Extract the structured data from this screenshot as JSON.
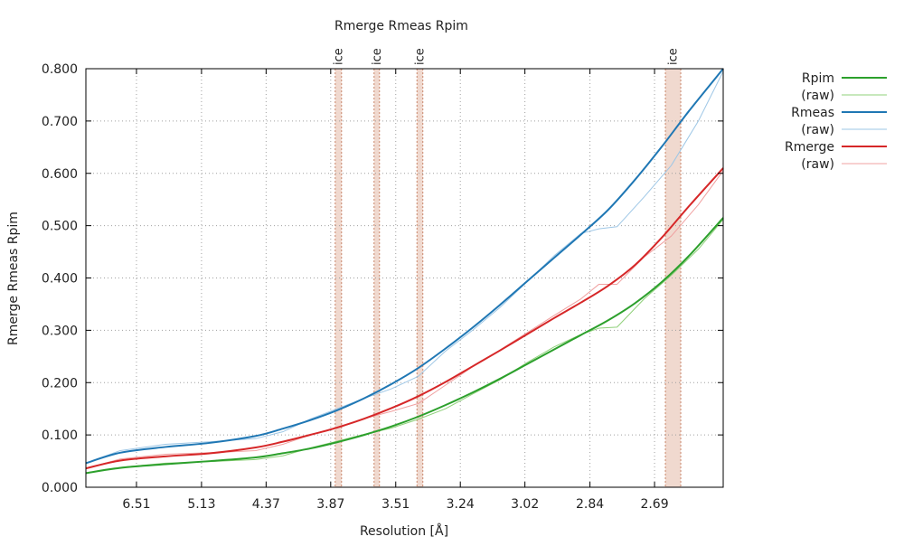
{
  "chart_data": {
    "type": "line",
    "title": "Rmerge Rmeas Rpim",
    "xlabel": "Resolution [Å]",
    "ylabel": "Rmerge Rmeas Rpim",
    "x_axis_note": "x values are 1/d² (Å⁻²); tick labels show resolution d in Å",
    "xlim": [
      0.0124,
      0.1535
    ],
    "ylim": [
      0.0,
      0.8
    ],
    "x_ticks": [
      {
        "x": 0.0236,
        "label": "6.51"
      },
      {
        "x": 0.038,
        "label": "5.13"
      },
      {
        "x": 0.0523,
        "label": "4.37"
      },
      {
        "x": 0.0666,
        "label": "3.87"
      },
      {
        "x": 0.081,
        "label": "3.51"
      },
      {
        "x": 0.0953,
        "label": "3.24"
      },
      {
        "x": 0.1096,
        "label": "3.02"
      },
      {
        "x": 0.124,
        "label": "2.84"
      },
      {
        "x": 0.1383,
        "label": "2.69"
      }
    ],
    "y_ticks": [
      "0.000",
      "0.100",
      "0.200",
      "0.300",
      "0.400",
      "0.500",
      "0.600",
      "0.700",
      "0.800"
    ],
    "grid": true,
    "legend_position": "right",
    "ice_rings": [
      {
        "x0": 0.0676,
        "x1": 0.069,
        "label": "ice"
      },
      {
        "x0": 0.0762,
        "x1": 0.0774,
        "label": "ice"
      },
      {
        "x0": 0.0857,
        "x1": 0.087,
        "label": "ice"
      },
      {
        "x0": 0.1407,
        "x1": 0.1441,
        "label": "ice"
      }
    ],
    "series": [
      {
        "name": "Rpim",
        "color": "#2ca02c",
        "style": "smooth",
        "x": [
          0.0124,
          0.02,
          0.03,
          0.04,
          0.05,
          0.056,
          0.062,
          0.068,
          0.074,
          0.08,
          0.086,
          0.092,
          0.098,
          0.104,
          0.11,
          0.116,
          0.122,
          0.128,
          0.134,
          0.14,
          0.146,
          0.1535
        ],
        "y": [
          0.027,
          0.037,
          0.044,
          0.05,
          0.057,
          0.065,
          0.074,
          0.086,
          0.1,
          0.116,
          0.135,
          0.157,
          0.181,
          0.207,
          0.235,
          0.263,
          0.291,
          0.319,
          0.352,
          0.393,
          0.443,
          0.515
        ]
      },
      {
        "name": "(raw)",
        "color": "#8fd07a",
        "style": "thin",
        "x": [
          0.0124,
          0.02,
          0.03,
          0.04,
          0.05,
          0.056,
          0.062,
          0.068,
          0.074,
          0.08,
          0.086,
          0.092,
          0.098,
          0.104,
          0.11,
          0.116,
          0.122,
          0.126,
          0.13,
          0.136,
          0.142,
          0.148,
          0.1535
        ],
        "y": [
          0.027,
          0.038,
          0.046,
          0.049,
          0.053,
          0.06,
          0.075,
          0.088,
          0.101,
          0.113,
          0.13,
          0.15,
          0.178,
          0.205,
          0.238,
          0.268,
          0.292,
          0.304,
          0.306,
          0.36,
          0.405,
          0.455,
          0.512
        ]
      },
      {
        "name": "Rmeas",
        "color": "#1f77b4",
        "style": "smooth",
        "x": [
          0.0124,
          0.02,
          0.03,
          0.04,
          0.05,
          0.056,
          0.062,
          0.068,
          0.074,
          0.08,
          0.086,
          0.092,
          0.098,
          0.104,
          0.11,
          0.116,
          0.122,
          0.128,
          0.134,
          0.14,
          0.146,
          0.1535
        ],
        "y": [
          0.046,
          0.066,
          0.077,
          0.085,
          0.098,
          0.112,
          0.128,
          0.147,
          0.17,
          0.197,
          0.228,
          0.265,
          0.305,
          0.348,
          0.393,
          0.438,
          0.483,
          0.53,
          0.588,
          0.652,
          0.72,
          0.8
        ]
      },
      {
        "name": "(raw)",
        "color": "#9ec7e6",
        "style": "thin",
        "x": [
          0.0124,
          0.02,
          0.03,
          0.04,
          0.05,
          0.056,
          0.062,
          0.068,
          0.074,
          0.08,
          0.086,
          0.092,
          0.098,
          0.104,
          0.11,
          0.116,
          0.122,
          0.126,
          0.13,
          0.136,
          0.142,
          0.148,
          0.1535
        ],
        "y": [
          0.046,
          0.07,
          0.082,
          0.087,
          0.093,
          0.106,
          0.13,
          0.15,
          0.17,
          0.188,
          0.212,
          0.26,
          0.3,
          0.343,
          0.392,
          0.442,
          0.485,
          0.494,
          0.498,
          0.555,
          0.615,
          0.7,
          0.795
        ]
      },
      {
        "name": "Rmerge",
        "color": "#d62728",
        "style": "smooth",
        "x": [
          0.0124,
          0.02,
          0.03,
          0.04,
          0.05,
          0.056,
          0.062,
          0.068,
          0.074,
          0.08,
          0.086,
          0.092,
          0.098,
          0.104,
          0.11,
          0.116,
          0.122,
          0.128,
          0.134,
          0.14,
          0.146,
          0.1535
        ],
        "y": [
          0.036,
          0.051,
          0.059,
          0.065,
          0.076,
          0.087,
          0.1,
          0.114,
          0.131,
          0.151,
          0.174,
          0.201,
          0.231,
          0.261,
          0.292,
          0.323,
          0.353,
          0.385,
          0.425,
          0.478,
          0.538,
          0.61
        ]
      },
      {
        "name": "(raw)",
        "color": "#f0a0a0",
        "style": "thin",
        "x": [
          0.0124,
          0.02,
          0.03,
          0.04,
          0.05,
          0.056,
          0.062,
          0.068,
          0.074,
          0.08,
          0.086,
          0.092,
          0.098,
          0.104,
          0.11,
          0.116,
          0.122,
          0.126,
          0.13,
          0.136,
          0.142,
          0.148,
          0.1535
        ],
        "y": [
          0.036,
          0.054,
          0.063,
          0.066,
          0.07,
          0.082,
          0.1,
          0.115,
          0.131,
          0.145,
          0.16,
          0.195,
          0.23,
          0.262,
          0.295,
          0.328,
          0.36,
          0.388,
          0.388,
          0.44,
          0.48,
          0.54,
          0.605
        ]
      }
    ]
  }
}
